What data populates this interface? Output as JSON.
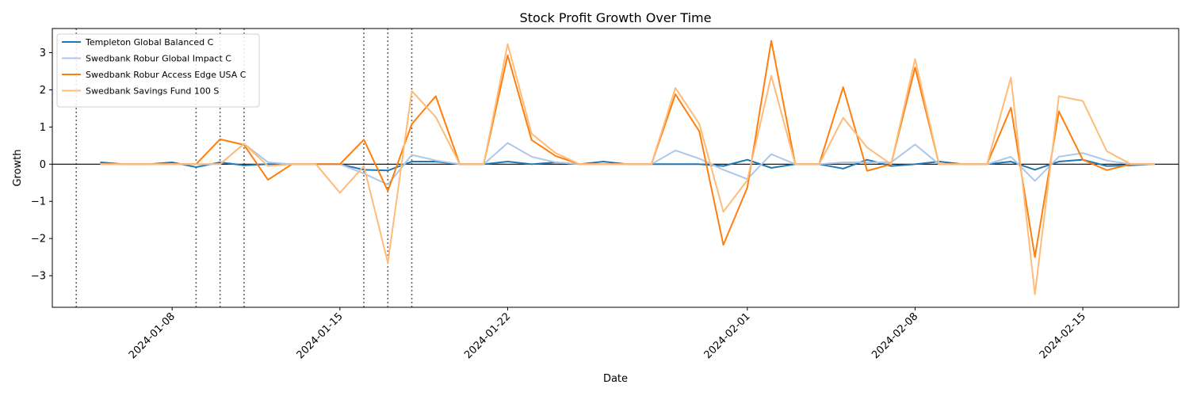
{
  "chart_data": {
    "type": "line",
    "title": "Stock Profit Growth Over Time",
    "xlabel": "Date",
    "ylabel": "Growth",
    "xlim": [
      "2024-01-03",
      "2024-02-19"
    ],
    "ylim": [
      -3.85,
      3.65
    ],
    "xticks": [
      "2024-01-08",
      "2024-01-15",
      "2024-01-22",
      "2024-02-01",
      "2024-02-08",
      "2024-02-15"
    ],
    "yticks": [
      -3,
      -2,
      -1,
      0,
      1,
      2,
      3
    ],
    "ytick_labels": [
      "−3",
      "−2",
      "−1",
      "0",
      "1",
      "2",
      "3"
    ],
    "hline": 0,
    "vlines": [
      "2024-01-04",
      "2024-01-09",
      "2024-01-10",
      "2024-01-11",
      "2024-01-16",
      "2024-01-17",
      "2024-01-18"
    ],
    "legend_position": "top-left",
    "grid": false,
    "x": [
      "2024-01-05",
      "2024-01-06",
      "2024-01-07",
      "2024-01-08",
      "2024-01-09",
      "2024-01-10",
      "2024-01-11",
      "2024-01-12",
      "2024-01-13",
      "2024-01-14",
      "2024-01-15",
      "2024-01-16",
      "2024-01-17",
      "2024-01-18",
      "2024-01-19",
      "2024-01-20",
      "2024-01-21",
      "2024-01-22",
      "2024-01-23",
      "2024-01-24",
      "2024-01-25",
      "2024-01-26",
      "2024-01-27",
      "2024-01-28",
      "2024-01-29",
      "2024-01-30",
      "2024-01-31",
      "2024-02-01",
      "2024-02-02",
      "2024-02-03",
      "2024-02-04",
      "2024-02-05",
      "2024-02-06",
      "2024-02-07",
      "2024-02-08",
      "2024-02-09",
      "2024-02-10",
      "2024-02-11",
      "2024-02-12",
      "2024-02-13",
      "2024-02-14",
      "2024-02-15",
      "2024-02-16",
      "2024-02-17",
      "2024-02-18"
    ],
    "series": [
      {
        "name": "Templeton Global Balanced C",
        "color": "#1f77b4",
        "width": 2,
        "values": [
          0.05,
          0,
          0,
          0.05,
          -0.08,
          0.05,
          -0.03,
          0,
          0,
          0,
          0,
          -0.15,
          -0.17,
          0.07,
          0.07,
          0,
          0,
          0.07,
          0,
          0.05,
          0,
          0.07,
          0,
          0,
          0,
          0,
          -0.05,
          0.12,
          -0.1,
          0,
          0,
          -0.12,
          0.12,
          -0.05,
          0,
          0.07,
          0,
          0,
          0.07,
          -0.15,
          0.07,
          0.12,
          -0.05,
          -0.03,
          0
        ]
      },
      {
        "name": "Swedbank Robur Global Impact C",
        "color": "#aec7e8",
        "width": 2,
        "values": [
          0,
          0,
          0,
          0,
          0,
          0,
          0.55,
          0.05,
          0,
          0,
          0,
          -0.25,
          -0.55,
          0.25,
          0.1,
          0,
          0,
          0.57,
          0.2,
          0.05,
          0,
          0,
          0,
          0,
          0.37,
          0.15,
          -0.15,
          -0.4,
          0.27,
          0,
          0,
          0.05,
          0.05,
          0.05,
          0.53,
          0,
          0,
          0,
          0.2,
          -0.45,
          0.2,
          0.3,
          0.1,
          0,
          0
        ]
      },
      {
        "name": "Swedbank Robur Access Edge USA C",
        "color": "#ff7f0e",
        "width": 2,
        "values": [
          0,
          0,
          0,
          0,
          0,
          0.67,
          0.52,
          -0.42,
          0,
          0,
          0,
          0.66,
          -0.72,
          1.08,
          1.83,
          0,
          0,
          2.93,
          0.65,
          0.22,
          0,
          0,
          0,
          0,
          1.88,
          0.88,
          -2.17,
          -0.63,
          3.32,
          0,
          0,
          2.07,
          -0.18,
          0,
          2.6,
          0,
          0,
          0,
          1.52,
          -2.5,
          1.42,
          0.12,
          -0.16,
          0,
          0
        ]
      },
      {
        "name": "Swedbank Savings Fund 100 S",
        "color": "#ffbb78",
        "width": 2,
        "values": [
          0,
          0,
          0,
          0,
          0,
          0,
          0.55,
          -0.05,
          0,
          0,
          -0.77,
          -0.05,
          -2.65,
          1.97,
          1.27,
          0,
          0,
          3.23,
          0.82,
          0.3,
          0,
          0,
          0,
          0,
          2.05,
          1.08,
          -1.28,
          -0.43,
          2.38,
          0,
          0,
          1.25,
          0.45,
          0,
          2.83,
          0,
          0,
          0,
          2.33,
          -3.5,
          1.83,
          1.7,
          0.35,
          0,
          0
        ]
      }
    ]
  }
}
